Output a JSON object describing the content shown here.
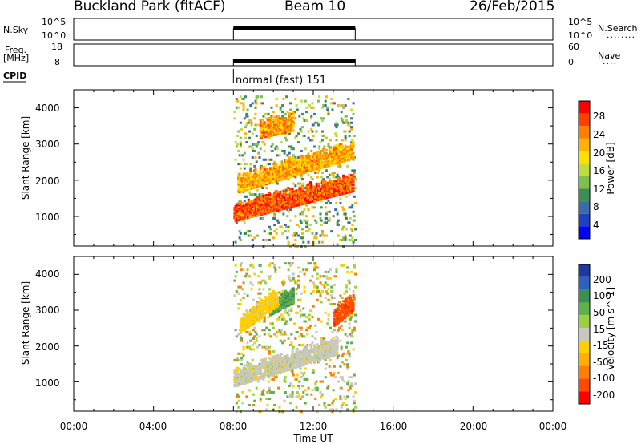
{
  "header": {
    "station": "Buckland Park (fitACF)",
    "beam": "Beam 10",
    "date": "26/Feb/2015"
  },
  "nsky_panel": {
    "left_label": "N.Sky",
    "left_ticks": [
      "10^5",
      "10^0"
    ],
    "right_ticks": [
      "10^5",
      "10^0"
    ],
    "right_label": "N.Search",
    "right_dots": "........"
  },
  "freq_panel": {
    "left_label_line1": "Freq.",
    "left_label_line2": "[MHz]",
    "left_ticks": [
      "18",
      "8"
    ],
    "right_ticks": [
      "60",
      "0"
    ],
    "right_label": "Nave",
    "right_dots": "...."
  },
  "cpid": {
    "label": "CPID",
    "text": "normal (fast) 151"
  },
  "power_panel": {
    "ylabel": "Slant Range [km]",
    "colorbar_label": "Power [dB]",
    "colorbar_ticks": [
      "28",
      "24",
      "20",
      "16",
      "12",
      "8",
      "4"
    ],
    "colorbar_colors": [
      "#ff0000",
      "#ff4000",
      "#ff8000",
      "#ffb300",
      "#ffe000",
      "#c0dd40",
      "#7fc04a",
      "#3e8f55",
      "#3e6aa8",
      "#1f40c0",
      "#0000ff"
    ]
  },
  "velocity_panel": {
    "ylabel": "Slant Range [km]",
    "colorbar_label": "Velocity [m s^-1]",
    "colorbar_ticks": [
      "200",
      "100",
      "50",
      "15",
      "-15",
      "-50",
      "-100",
      "-200"
    ],
    "colorbar_colors": [
      "#1c3a9e",
      "#2f5fbf",
      "#3e8f55",
      "#60b04c",
      "#9cd040",
      "#c8c8c0",
      "#ffd000",
      "#ffb000",
      "#ff8000",
      "#ff4a00",
      "#ff0000"
    ]
  },
  "xaxis": {
    "label": "Time UT",
    "ticks": [
      "00:00",
      "04:00",
      "08:00",
      "12:00",
      "16:00",
      "20:00",
      "00:00"
    ]
  },
  "chart_data": {
    "type": "heatmap",
    "x_unit": "hours UT",
    "xlim": [
      0,
      24
    ],
    "data_window": [
      8.0,
      14.1
    ],
    "power_panel": {
      "ylabel": "Slant Range [km]",
      "ylim": [
        180,
        4500
      ],
      "yticks": [
        1000,
        2000,
        3000,
        4000
      ],
      "colorbar": "Power [dB]",
      "clim": [
        0,
        31
      ],
      "features": [
        {
          "from_time": 8.0,
          "to_time": 14.0,
          "range_start_km": 900,
          "range_end_km": 2100,
          "power_dB": 27
        },
        {
          "from_time": 8.2,
          "to_time": 14.0,
          "range_start_km": 1700,
          "range_end_km": 3050,
          "power_dB": 22
        },
        {
          "from_time": 9.3,
          "to_time": 11.0,
          "range_start_km": 3200,
          "range_end_km": 3500,
          "power_dB": 23
        }
      ]
    },
    "velocity_panel": {
      "ylabel": "Slant Range [km]",
      "ylim": [
        180,
        4500
      ],
      "yticks": [
        1000,
        2000,
        3000,
        4000
      ],
      "colorbar": "Velocity [m s^-1]",
      "clim": [
        -250,
        250
      ],
      "features": [
        {
          "from_time": 8.0,
          "to_time": 13.2,
          "range_start_km": 900,
          "range_end_km": 2200,
          "velocity": 0
        },
        {
          "from_time": 13.0,
          "to_time": 14.0,
          "range_start_km": 2600,
          "range_end_km": 3200,
          "velocity": -200
        },
        {
          "from_time": 9.8,
          "to_time": 11.0,
          "range_start_km": 2900,
          "range_end_km": 3400,
          "velocity": 120
        },
        {
          "from_time": 8.3,
          "to_time": 10.2,
          "range_start_km": 2400,
          "range_end_km": 3500,
          "velocity": -50
        }
      ]
    }
  }
}
